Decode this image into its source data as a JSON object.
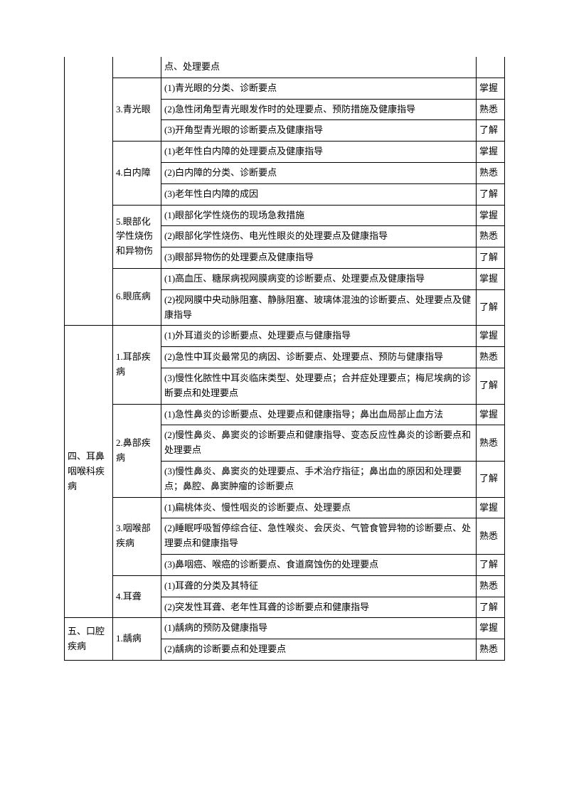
{
  "rows": [
    {
      "c1": "",
      "c1rs": 12,
      "c2": "",
      "c2rs": 1,
      "c3": "点、处理要点",
      "c4": "",
      "borders": {
        "top": false,
        "left_top": false,
        "c2_top": false
      }
    },
    {
      "c2": "3.青光眼",
      "c2rs": 3,
      "c3": "(1)青光眼的分类、诊断要点",
      "c4": "掌握"
    },
    {
      "c3": "(2)急性闭角型青光眼发作时的处理要点、预防措施及健康指导",
      "c4": "熟悉"
    },
    {
      "c3": "(3)开角型青光眼的诊断要点及健康指导",
      "c4": "了解"
    },
    {
      "c2": "4.白内障",
      "c2rs": 3,
      "c3": "(1)老年性白内障的处理要点及健康指导",
      "c4": "掌握"
    },
    {
      "c3": "(2)白内障的分类、诊断要点",
      "c4": "熟悉"
    },
    {
      "c3": "(3)老年性白内障的成因",
      "c4": "了解"
    },
    {
      "c2": "5.眼部化学性烧伤和异物伤",
      "c2rs": 3,
      "c3": "(1)眼部化学性烧伤的现场急救措施",
      "c4": "掌握"
    },
    {
      "c3": "(2)眼部化学性烧伤、电光性眼炎的处理要点及健康指导",
      "c4": "熟悉"
    },
    {
      "c3": "(3)眼部异物伤的处理要点及健康指导",
      "c4": "了解"
    },
    {
      "c2": "6.眼底病",
      "c2rs": 2,
      "c3": "(1)高血压、糖尿病视网膜病变的诊断要点、处理要点及健康指导",
      "c4": "掌握"
    },
    {
      "c3": "(2)视网膜中央动脉阻塞、静脉阻塞、玻璃体混浊的诊断要点、处理要点及健康指导",
      "c4": "了解"
    },
    {
      "c1": "四、耳鼻咽喉科疾病",
      "c1rs": 11,
      "c2": "1.耳部疾病",
      "c2rs": 3,
      "c3": "(1)外耳道炎的诊断要点、处理要点与健康指导",
      "c4": "掌握"
    },
    {
      "c3": "(2)急性中耳炎最常见的病因、诊断要点、处理要点、预防与健康指导",
      "c4": "熟悉"
    },
    {
      "c3": "(3)慢性化脓性中耳炎临床类型、处理要点；合并症处理要点；梅尼埃病的诊断要点和处理要点",
      "c4": "了解"
    },
    {
      "c2": "2.鼻部疾病",
      "c2rs": 3,
      "c3": "(1)急性鼻炎的诊断要点、处理要点和健康指导；鼻出血局部止血方法",
      "c4": "掌握"
    },
    {
      "c3": "(2)慢性鼻炎、鼻窦炎的诊断要点和健康指导、变态反应性鼻炎的诊断要点和处理要点",
      "c4": "熟悉"
    },
    {
      "c3": "(3)慢性鼻炎、鼻窦炎的处理要点、手术治疗指征；鼻出血的原因和处理要点；鼻腔、鼻窦肿瘤的诊断要点",
      "c4": "了解"
    },
    {
      "c2": "3.咽喉部疾病",
      "c2rs": 3,
      "c3": "(1)扁桃体炎、慢性咽炎的诊断要点、处理要点",
      "c4": "掌握"
    },
    {
      "c3": "(2)睡眠呼吸暂停综合征、急性喉炎、会厌炎、气管食管异物的诊断要点、处理要点和健康指导",
      "c4": "熟悉"
    },
    {
      "c3": "(3)鼻咽癌、喉癌的诊断要点、食道腐蚀伤的处理要点",
      "c4": "了解"
    },
    {
      "c2": "4.耳聋",
      "c2rs": 2,
      "c3": "(1)耳聋的分类及其特征",
      "c4": "熟悉"
    },
    {
      "c3": "(2)突发性耳聋、老年性耳聋的诊断要点和健康指导",
      "c4": "了解"
    },
    {
      "c1": "五、口腔疾病",
      "c1rs": 2,
      "c2": "1.龋病",
      "c2rs": 2,
      "c3": "(1)龋病的预防及健康指导",
      "c4": "掌握"
    },
    {
      "c3": "(2)龋病的诊断要点和处理要点",
      "c4": "熟悉"
    }
  ]
}
